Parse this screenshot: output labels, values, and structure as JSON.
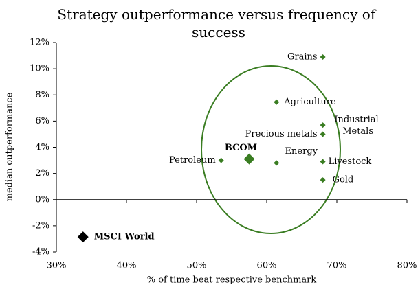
{
  "chart_data": {
    "type": "scatter",
    "title": "Strategy outperformance versus frequency of success",
    "x_label": "% of time beat respective benchmark",
    "y_label": "median outperformance",
    "xlim": [
      30,
      80
    ],
    "ylim": [
      -4,
      12
    ],
    "xticks": [
      {
        "value": 30,
        "label": "30%"
      },
      {
        "value": 40,
        "label": "40%"
      },
      {
        "value": 50,
        "label": "50%"
      },
      {
        "value": 60,
        "label": "60%"
      },
      {
        "value": 70,
        "label": "70%"
      },
      {
        "value": 80,
        "label": "80%"
      }
    ],
    "yticks": [
      {
        "value": -4,
        "label": "-4%"
      },
      {
        "value": -2,
        "label": "-2%"
      },
      {
        "value": 0,
        "label": "0%"
      },
      {
        "value": 2,
        "label": "2%"
      },
      {
        "value": 4,
        "label": "4%"
      },
      {
        "value": 6,
        "label": "6%"
      },
      {
        "value": 8,
        "label": "8%"
      },
      {
        "value": 10,
        "label": "10%"
      },
      {
        "value": 12,
        "label": "12%"
      }
    ],
    "points": [
      {
        "label": "Grains",
        "x": 68,
        "y": 10.9,
        "color": "#3a7d22"
      },
      {
        "label": "Agriculture",
        "x": 61.4,
        "y": 7.45,
        "color": "#3a7d22"
      },
      {
        "label": "Industrial Metals",
        "x": 68,
        "y": 5.7,
        "color": "#3a7d22"
      },
      {
        "label": "Precious metals",
        "x": 68,
        "y": 5.0,
        "color": "#3a7d22"
      },
      {
        "label": "Energy",
        "x": 61.4,
        "y": 2.8,
        "color": "#3a7d22"
      },
      {
        "label": "Livestock",
        "x": 68,
        "y": 2.9,
        "color": "#3a7d22"
      },
      {
        "label": "Gold",
        "x": 68,
        "y": 1.5,
        "color": "#3a7d22"
      },
      {
        "label": "Petroleum",
        "x": 53.5,
        "y": 3.0,
        "color": "#3a7d22"
      },
      {
        "label": "BCOM",
        "x": 57.5,
        "y": 3.1,
        "color": "#3a7d22",
        "bold": true
      },
      {
        "label": "MSCI World",
        "x": 33.8,
        "y": -2.85,
        "color": "#000000",
        "bold": true
      }
    ]
  }
}
